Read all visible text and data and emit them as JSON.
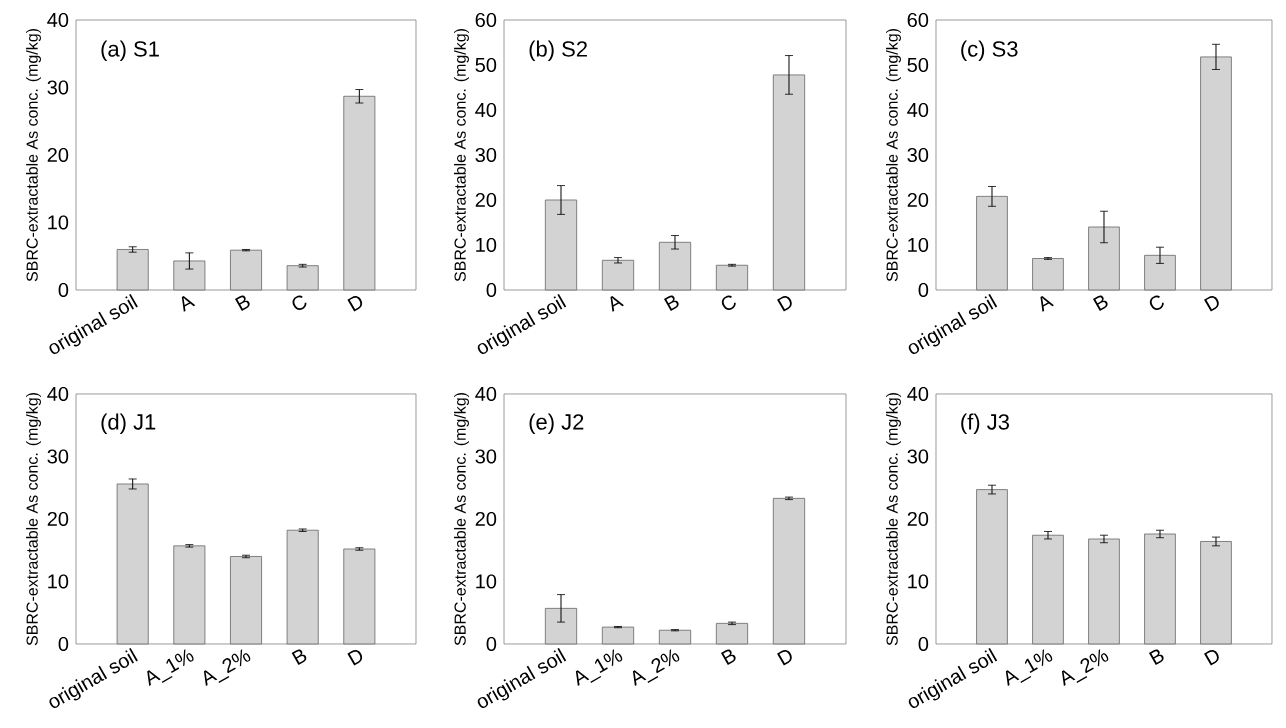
{
  "chart_data": [
    {
      "type": "bar",
      "title": "(a) S1",
      "ylabel": "SBRC-extractable As conc. (mg/kg)",
      "categories": [
        "original soil",
        "A",
        "B",
        "C",
        "D"
      ],
      "values": [
        6.0,
        4.3,
        5.9,
        3.6,
        28.7
      ],
      "errors": [
        0.4,
        1.2,
        0.1,
        0.2,
        1.0
      ],
      "color": "#d3d3d3",
      "ylim": [
        0,
        40
      ],
      "yticks": [
        0,
        10,
        20,
        30,
        40
      ],
      "grid": false
    },
    {
      "type": "bar",
      "title": "(b) S2",
      "ylabel": "SBRC-extractable As conc. (mg/kg)",
      "categories": [
        "original soil",
        "A",
        "B",
        "C",
        "D"
      ],
      "values": [
        20.0,
        6.6,
        10.6,
        5.5,
        47.8
      ],
      "errors": [
        3.2,
        0.6,
        1.5,
        0.2,
        4.3
      ],
      "color": "#d3d3d3",
      "ylim": [
        0,
        60
      ],
      "yticks": [
        0,
        10,
        20,
        30,
        40,
        50,
        60
      ],
      "grid": false
    },
    {
      "type": "bar",
      "title": "(c) S3",
      "ylabel": "SBRC-extractable As conc. (mg/kg)",
      "categories": [
        "original soil",
        "A",
        "B",
        "C",
        "D"
      ],
      "values": [
        20.8,
        7.0,
        14.0,
        7.7,
        51.8
      ],
      "errors": [
        2.2,
        0.2,
        3.5,
        1.8,
        2.8
      ],
      "color": "#d3d3d3",
      "ylim": [
        0,
        60
      ],
      "yticks": [
        0,
        10,
        20,
        30,
        40,
        50,
        60
      ],
      "grid": false
    },
    {
      "type": "bar",
      "title": "(d) J1",
      "ylabel": "SBRC-extractable As conc. (mg/kg)",
      "categories": [
        "original soil",
        "A_1%",
        "A_2%",
        "B",
        "D"
      ],
      "values": [
        25.6,
        15.7,
        14.0,
        18.2,
        15.2
      ],
      "errors": [
        0.8,
        0.2,
        0.2,
        0.2,
        0.2
      ],
      "color": "#d3d3d3",
      "ylim": [
        0,
        40
      ],
      "yticks": [
        0,
        10,
        20,
        30,
        40
      ],
      "grid": false
    },
    {
      "type": "bar",
      "title": "(e) J2",
      "ylabel": "SBRC-extractable As conc. (mg/kg)",
      "categories": [
        "original soil",
        "A_1%",
        "A_2%",
        "B",
        "D"
      ],
      "values": [
        5.7,
        2.7,
        2.2,
        3.3,
        23.3
      ],
      "errors": [
        2.2,
        0.1,
        0.1,
        0.2,
        0.2
      ],
      "color": "#d3d3d3",
      "ylim": [
        0,
        40
      ],
      "yticks": [
        0,
        10,
        20,
        30,
        40
      ],
      "grid": false
    },
    {
      "type": "bar",
      "title": "(f) J3",
      "ylabel": "SBRC-extractable As conc. (mg/kg)",
      "categories": [
        "original soil",
        "A_1%",
        "A_2%",
        "B",
        "D"
      ],
      "values": [
        24.7,
        17.4,
        16.8,
        17.6,
        16.4
      ],
      "errors": [
        0.7,
        0.6,
        0.6,
        0.6,
        0.7
      ],
      "color": "#d3d3d3",
      "ylim": [
        0,
        40
      ],
      "yticks": [
        0,
        10,
        20,
        30,
        40
      ],
      "grid": false
    }
  ]
}
